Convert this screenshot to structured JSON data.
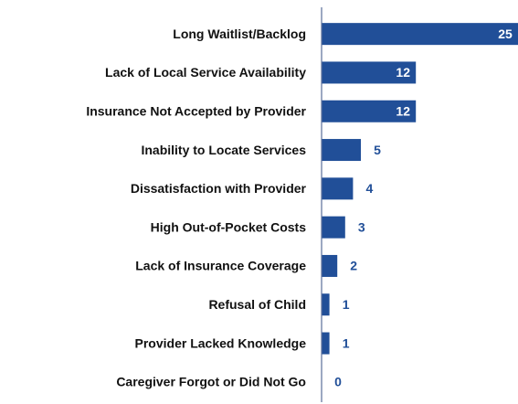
{
  "chart_data": {
    "type": "bar",
    "orientation": "horizontal",
    "categories": [
      "Long Waitlist/Backlog",
      "Lack of Local Service Availability",
      "Insurance Not Accepted by Provider",
      "Inability to Locate Services",
      "Dissatisfaction with Provider",
      "High Out-of-Pocket Costs",
      "Lack of Insurance Coverage",
      "Refusal of Child",
      "Provider Lacked Knowledge",
      "Caregiver Forgot or Did Not Go"
    ],
    "values": [
      25,
      12,
      12,
      5,
      4,
      3,
      2,
      1,
      1,
      0
    ],
    "color": "#214f98",
    "xlim": [
      0,
      25
    ]
  }
}
